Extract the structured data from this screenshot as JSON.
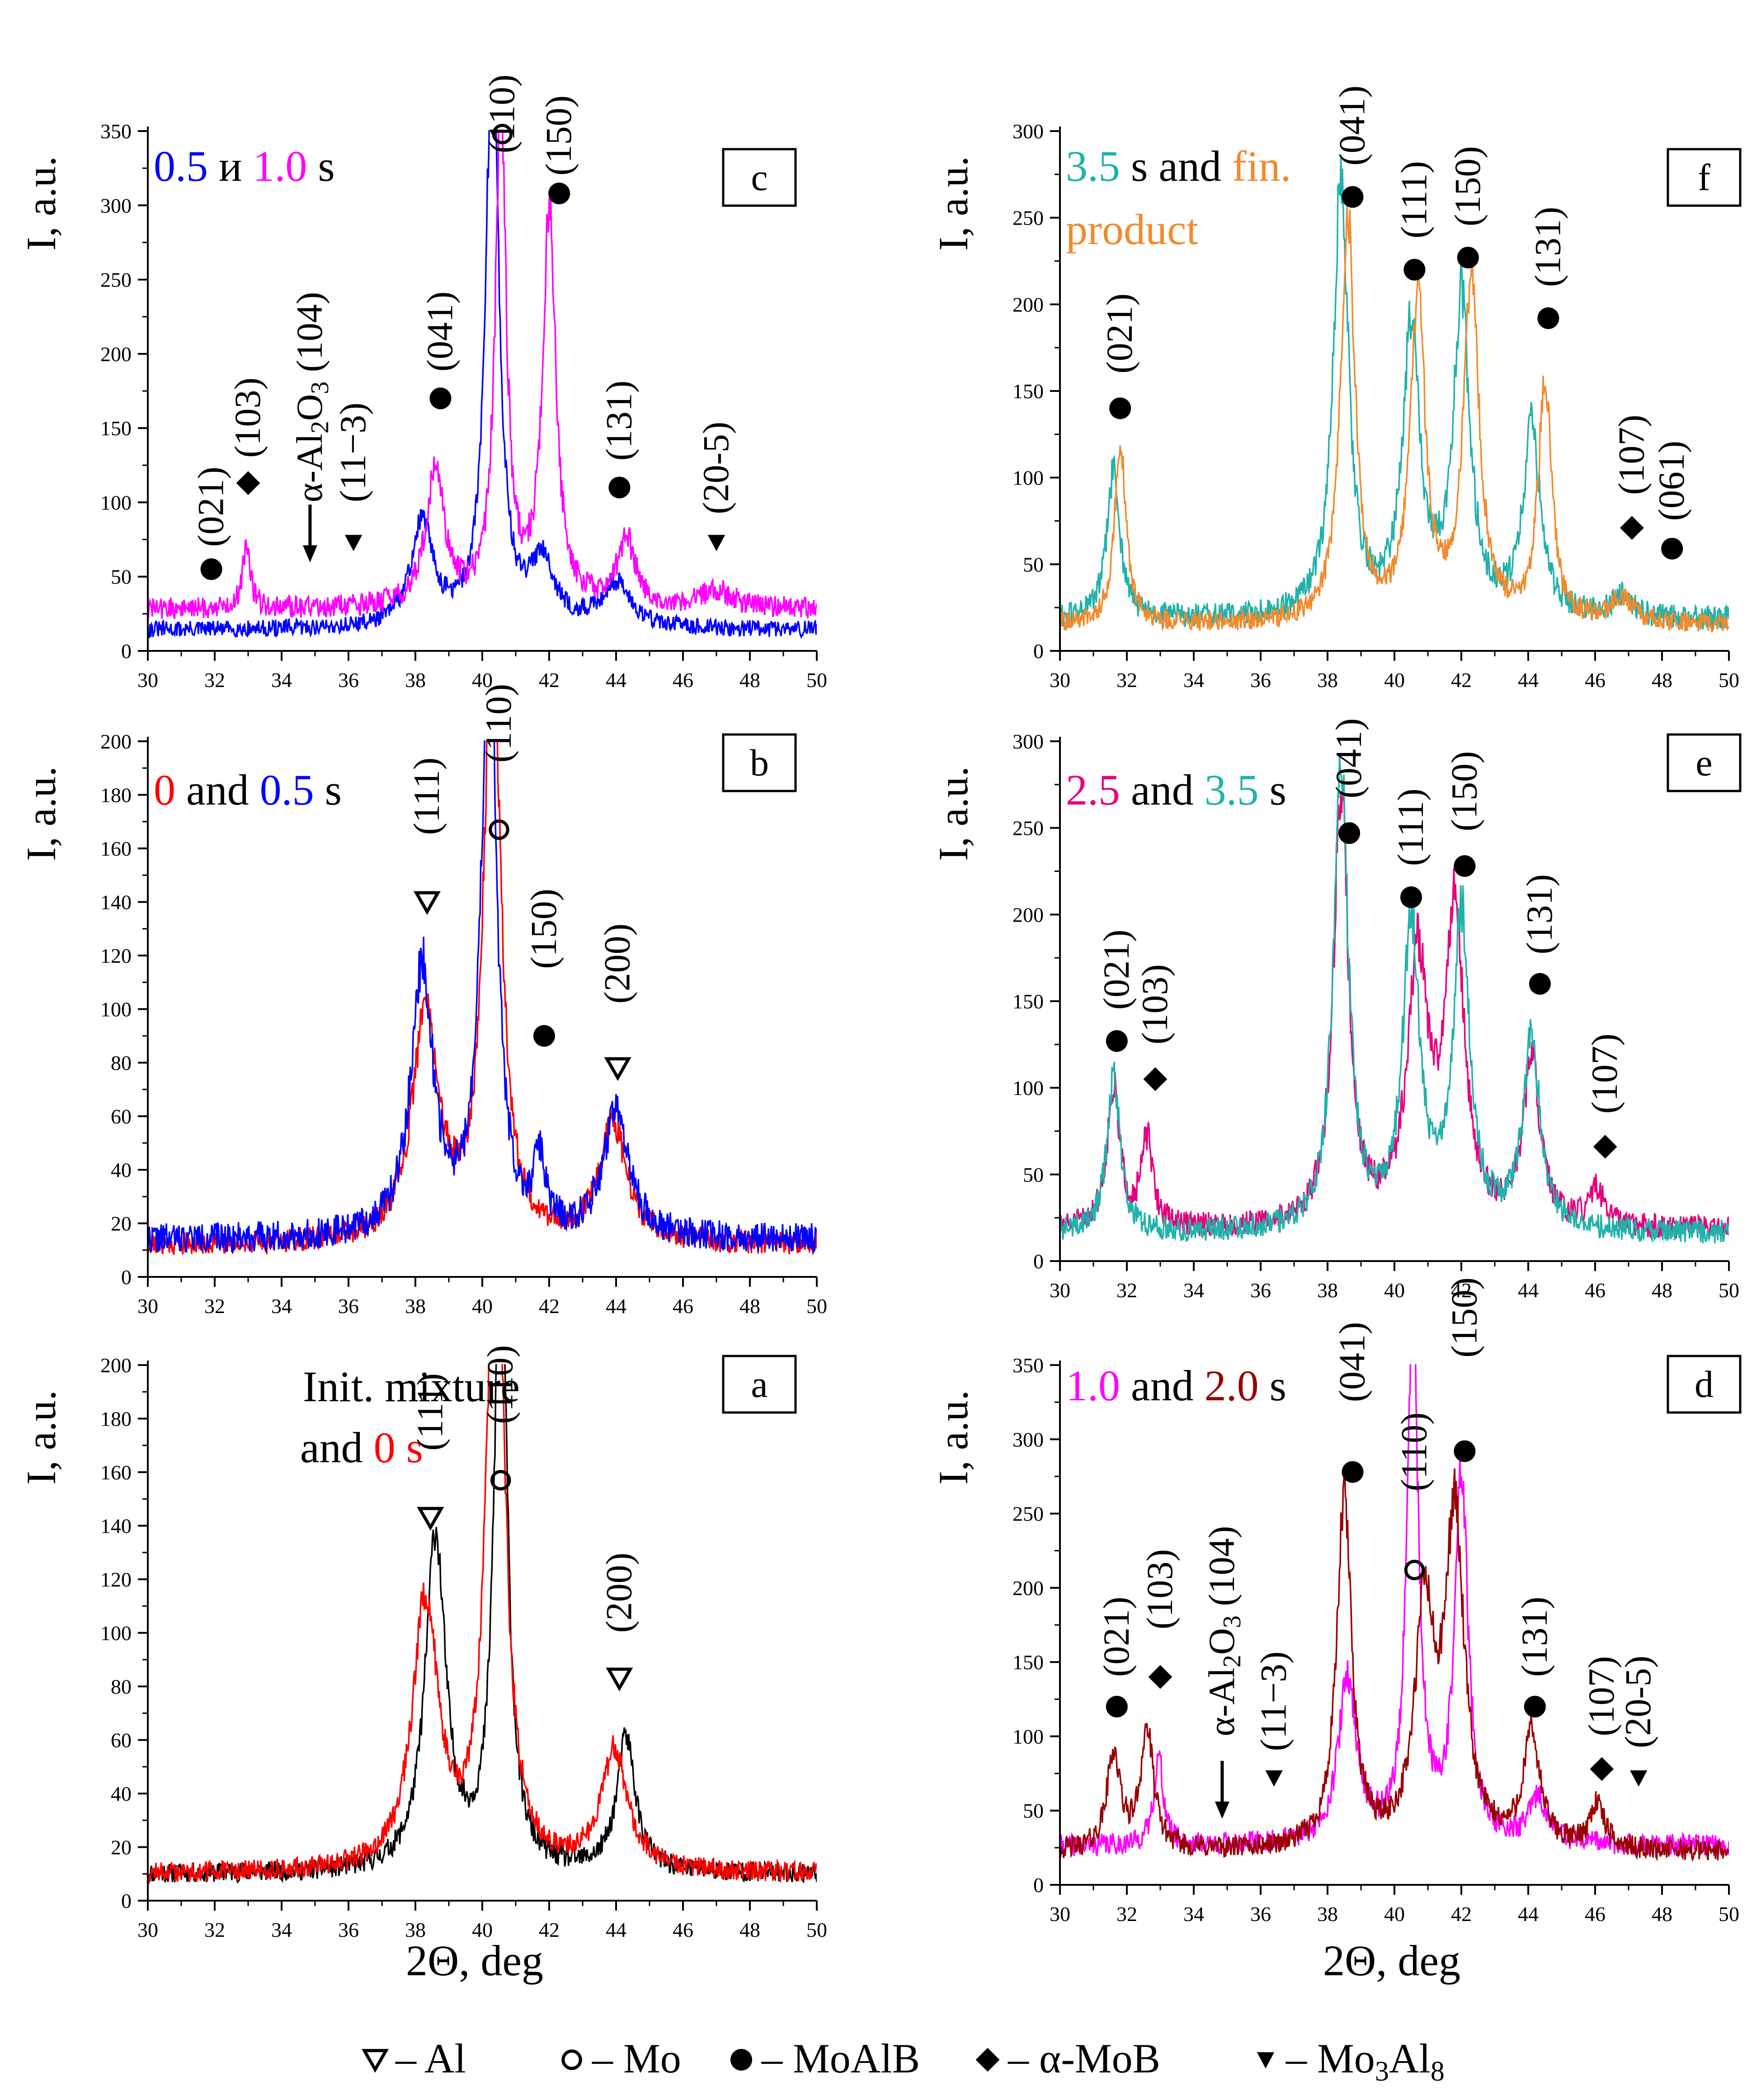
{
  "figure": {
    "x_axis_label": "2Θ, deg",
    "y_axis_label": "I, a.u.",
    "legend": [
      {
        "symbol": "open-triangle-down",
        "label": "– Al"
      },
      {
        "symbol": "open-circle",
        "label": "– Mo"
      },
      {
        "symbol": "filled-circle",
        "label": "– MoAlB"
      },
      {
        "symbol": "filled-diamond",
        "label": "– α-MoB"
      },
      {
        "symbol": "filled-triangle-down",
        "label": "– Mo3Al8"
      }
    ]
  },
  "chart_data": [
    {
      "panel": "a",
      "type": "line",
      "caption": [
        [
          {
            "text": "Init. mixture",
            "color": "#000000"
          }
        ],
        [
          {
            "text": "and ",
            "color": "#000000"
          },
          {
            "text": "0 s",
            "color": "#ff0000"
          }
        ]
      ],
      "xlim": [
        30,
        50
      ],
      "ylim": [
        0,
        200
      ],
      "yticks": [
        0,
        20,
        40,
        60,
        80,
        100,
        120,
        140,
        160,
        180,
        200
      ],
      "xticks": [
        30,
        32,
        34,
        36,
        38,
        40,
        42,
        44,
        46,
        48,
        50
      ],
      "series": [
        {
          "name": "Init. mixture",
          "color": "#000000",
          "baseline": 10,
          "noise": 3.5,
          "seed": 11,
          "peaks": [
            [
              38.6,
              125,
              0.55
            ],
            [
              40.55,
              240,
              0.35
            ],
            [
              44.3,
              50,
              0.5
            ]
          ]
        },
        {
          "name": "0 s",
          "color": "#ff0000",
          "baseline": 10,
          "noise": 3.5,
          "seed": 12,
          "peaks": [
            [
              38.3,
              100,
              0.7
            ],
            [
              40.4,
              270,
              0.45
            ],
            [
              43.95,
              45,
              0.7
            ]
          ]
        }
      ],
      "annotations": [
        {
          "text": "(111)",
          "x": 38.45,
          "y": 168,
          "marker": "open-triangle-down",
          "marker_y": 143
        },
        {
          "text": "(110)",
          "x": 40.55,
          "y": 178,
          "marker": "open-circle",
          "marker_y": 157
        },
        {
          "text": "(200)",
          "x": 44.1,
          "y": 100,
          "marker": "open-triangle-down",
          "marker_y": 83
        }
      ]
    },
    {
      "panel": "b",
      "type": "line",
      "caption": [
        [
          {
            "text": "0",
            "color": "#ff0000"
          },
          {
            "text": " and ",
            "color": "#000000"
          },
          {
            "text": "0.5",
            "color": "#0000ff"
          },
          {
            "text": " s",
            "color": "#000000"
          }
        ]
      ],
      "xlim": [
        30,
        50
      ],
      "ylim": [
        0,
        200
      ],
      "yticks": [
        0,
        20,
        40,
        60,
        80,
        100,
        120,
        140,
        160,
        180,
        200
      ],
      "xticks": [
        30,
        32,
        34,
        36,
        38,
        40,
        42,
        44,
        46,
        48,
        50
      ],
      "series": [
        {
          "name": "0 s",
          "color": "#ff0000",
          "baseline": 12,
          "noise": 4,
          "seed": 21,
          "peaks": [
            [
              38.3,
              85,
              0.7
            ],
            [
              40.3,
              230,
              0.45
            ],
            [
              43.9,
              45,
              0.7
            ]
          ]
        },
        {
          "name": "0.5 s",
          "color": "#0000ff",
          "baseline": 14,
          "noise": 5,
          "seed": 22,
          "peaks": [
            [
              38.2,
              100,
              0.6
            ],
            [
              40.2,
              230,
              0.4
            ],
            [
              41.7,
              25,
              0.3
            ],
            [
              44.0,
              45,
              0.7
            ]
          ]
        }
      ],
      "annotations": [
        {
          "text": "(111)",
          "x": 38.35,
          "y": 165,
          "marker": "open-triangle-down",
          "marker_y": 140
        },
        {
          "text": "(110)",
          "x": 40.5,
          "y": 192,
          "marker": "open-circle",
          "marker_y": 167
        },
        {
          "text": "(150)",
          "x": 41.85,
          "y": 115,
          "marker": "filled-circle",
          "marker_y": 90
        },
        {
          "text": "(200)",
          "x": 44.05,
          "y": 102,
          "marker": "open-triangle-down",
          "marker_y": 78
        }
      ]
    },
    {
      "panel": "c",
      "type": "line",
      "caption": [
        [
          {
            "text": "0.5",
            "color": "#0000ff"
          },
          {
            "text": " и ",
            "color": "#000000"
          },
          {
            "text": "1.0",
            "color": "#ff00ff"
          },
          {
            "text": " s",
            "color": "#000000"
          }
        ]
      ],
      "xlim": [
        30,
        50
      ],
      "ylim": [
        0,
        350
      ],
      "yticks": [
        0,
        50,
        100,
        150,
        200,
        250,
        300,
        350
      ],
      "xticks": [
        30,
        32,
        34,
        36,
        38,
        40,
        42,
        44,
        46,
        48,
        50
      ],
      "series": [
        {
          "name": "0.5 s",
          "color": "#0000ff",
          "baseline": 14,
          "noise": 5,
          "seed": 31,
          "peaks": [
            [
              38.2,
              70,
              0.6
            ],
            [
              40.3,
              400,
              0.35
            ],
            [
              41.8,
              45,
              0.6
            ],
            [
              44.0,
              30,
              0.8
            ]
          ]
        },
        {
          "name": "1.0 s",
          "color": "#ff00ff",
          "baseline": 28,
          "noise": 6,
          "seed": 32,
          "peaks": [
            [
              32.95,
              45,
              0.2
            ],
            [
              38.6,
              90,
              0.5
            ],
            [
              40.55,
              330,
              0.3
            ],
            [
              42.0,
              265,
              0.35
            ],
            [
              44.3,
              45,
              0.5
            ],
            [
              47.0,
              12,
              0.8
            ]
          ]
        }
      ],
      "annotations": [
        {
          "text": "(021)",
          "x": 31.9,
          "y": 70,
          "marker": "filled-circle",
          "marker_y": 55
        },
        {
          "text": "(103)",
          "x": 33.0,
          "y": 130,
          "marker": "filled-diamond",
          "marker_y": 113
        },
        {
          "text": "α-Al2O3 (104)",
          "x": 34.85,
          "y": 100,
          "marker": "arrow-down",
          "marker_y": 65
        },
        {
          "text": "(11−3)",
          "x": 36.15,
          "y": 100,
          "marker": "filled-triangle-down",
          "marker_y": 73
        },
        {
          "text": "(041)",
          "x": 38.75,
          "y": 188,
          "marker": "filled-circle",
          "marker_y": 170
        },
        {
          "text": "(110)",
          "x": 40.6,
          "y": 335,
          "marker": "open-circle",
          "marker_y": 348
        },
        {
          "text": "(150)",
          "x": 42.3,
          "y": 320,
          "marker": "filled-circle",
          "marker_y": 308
        },
        {
          "text": "(131)",
          "x": 44.1,
          "y": 128,
          "marker": "filled-circle",
          "marker_y": 110
        },
        {
          "text": "(20-5)",
          "x": 47.0,
          "y": 92,
          "marker": "filled-triangle-down",
          "marker_y": 73
        }
      ]
    },
    {
      "panel": "d",
      "type": "line",
      "caption": [
        [
          {
            "text": "1.0",
            "color": "#ff00ff"
          },
          {
            "text": " and ",
            "color": "#000000"
          },
          {
            "text": "2.0",
            "color": "#990000"
          },
          {
            "text": " s",
            "color": "#000000"
          }
        ]
      ],
      "xlim": [
        30,
        50
      ],
      "ylim": [
        0,
        350
      ],
      "yticks": [
        0,
        50,
        100,
        150,
        200,
        250,
        300,
        350
      ],
      "xticks": [
        30,
        32,
        34,
        36,
        38,
        40,
        42,
        44,
        46,
        48,
        50
      ],
      "series": [
        {
          "name": "1.0 s",
          "color": "#ff00ff",
          "baseline": 26,
          "noise": 6,
          "seed": 41,
          "peaks": [
            [
              32.95,
              60,
              0.25
            ],
            [
              38.6,
              110,
              0.5
            ],
            [
              40.55,
              360,
              0.3
            ],
            [
              42.0,
              250,
              0.35
            ],
            [
              44.3,
              30,
              0.5
            ]
          ]
        },
        {
          "name": "2.0 s",
          "color": "#990000",
          "baseline": 22,
          "noise": 6,
          "seed": 42,
          "peaks": [
            [
              31.6,
              65,
              0.35
            ],
            [
              32.6,
              80,
              0.35
            ],
            [
              38.5,
              235,
              0.4
            ],
            [
              40.9,
              155,
              0.5
            ],
            [
              41.8,
              220,
              0.5
            ],
            [
              44.1,
              75,
              0.45
            ],
            [
              46.05,
              30,
              0.4
            ]
          ]
        }
      ],
      "annotations": [
        {
          "text": "(021)",
          "x": 31.7,
          "y": 140,
          "marker": "filled-circle",
          "marker_y": 120
        },
        {
          "text": "(103)",
          "x": 33.0,
          "y": 172,
          "marker": "filled-diamond",
          "marker_y": 140
        },
        {
          "text": "α-Al2O3 (104)",
          "x": 34.85,
          "y": 100,
          "marker": "arrow-down",
          "marker_y": 50
        },
        {
          "text": "(11−3)",
          "x": 36.4,
          "y": 90,
          "marker": "filled-triangle-down",
          "marker_y": 72
        },
        {
          "text": "(041)",
          "x": 38.75,
          "y": 325,
          "marker": "filled-circle",
          "marker_y": 278
        },
        {
          "text": "(110)",
          "x": 40.6,
          "y": 265,
          "marker": "open-circle",
          "marker_y": 212
        },
        {
          "text": "(150)",
          "x": 42.1,
          "y": 355,
          "marker": "filled-circle",
          "marker_y": 292
        },
        {
          "text": "(131)",
          "x": 44.2,
          "y": 140,
          "marker": "filled-circle",
          "marker_y": 120
        },
        {
          "text": "(107)",
          "x": 46.2,
          "y": 100,
          "marker": "filled-diamond",
          "marker_y": 78
        },
        {
          "text": "(20-5)",
          "x": 47.3,
          "y": 92,
          "marker": "filled-triangle-down",
          "marker_y": 72
        }
      ]
    },
    {
      "panel": "e",
      "type": "line",
      "caption": [
        [
          {
            "text": "2.5",
            "color": "#e6007e"
          },
          {
            "text": " and ",
            "color": "#000000"
          },
          {
            "text": "3.5",
            "color": "#20b2aa"
          },
          {
            "text": " s",
            "color": "#000000"
          }
        ]
      ],
      "xlim": [
        30,
        50
      ],
      "ylim": [
        0,
        300
      ],
      "yticks": [
        0,
        50,
        100,
        150,
        200,
        250,
        300
      ],
      "xticks": [
        30,
        32,
        34,
        36,
        38,
        40,
        42,
        44,
        46,
        48,
        50
      ],
      "series": [
        {
          "name": "2.5 s",
          "color": "#e6007e",
          "baseline": 18,
          "noise": 6,
          "seed": 51,
          "peaks": [
            [
              31.6,
              80,
              0.35
            ],
            [
              32.6,
              50,
              0.3
            ],
            [
              38.4,
              250,
              0.4
            ],
            [
              40.7,
              150,
              0.55
            ],
            [
              41.8,
              180,
              0.5
            ],
            [
              44.1,
              95,
              0.45
            ],
            [
              46.05,
              20,
              0.4
            ]
          ]
        },
        {
          "name": "3.5 s",
          "color": "#20b2aa",
          "baseline": 16,
          "noise": 6,
          "seed": 52,
          "peaks": [
            [
              31.6,
              90,
              0.35
            ],
            [
              38.4,
              270,
              0.4
            ],
            [
              40.5,
              175,
              0.45
            ],
            [
              42.0,
              180,
              0.45
            ],
            [
              44.1,
              110,
              0.45
            ]
          ]
        }
      ],
      "annotations": [
        {
          "text": "(021)",
          "x": 31.7,
          "y": 145,
          "marker": "filled-circle",
          "marker_y": 127
        },
        {
          "text": "(103)",
          "x": 32.85,
          "y": 125,
          "marker": "filled-diamond",
          "marker_y": 105
        },
        {
          "text": "(041)",
          "x": 38.65,
          "y": 267,
          "marker": "filled-circle",
          "marker_y": 247
        },
        {
          "text": "(111)",
          "x": 40.5,
          "y": 228,
          "marker": "filled-circle",
          "marker_y": 210
        },
        {
          "text": "(150)",
          "x": 42.1,
          "y": 248,
          "marker": "filled-circle",
          "marker_y": 228
        },
        {
          "text": "(131)",
          "x": 44.35,
          "y": 177,
          "marker": "filled-circle",
          "marker_y": 160
        },
        {
          "text": "(107)",
          "x": 46.3,
          "y": 85,
          "marker": "filled-diamond",
          "marker_y": 66
        }
      ]
    },
    {
      "panel": "f",
      "type": "line",
      "caption": [
        [
          {
            "text": "3.5",
            "color": "#20b2aa"
          },
          {
            "text": " s and ",
            "color": "#000000"
          },
          {
            "text": "fin.",
            "color": "#f28a2e"
          }
        ],
        [
          {
            "text": "product",
            "color": "#f28a2e"
          }
        ]
      ],
      "xlim": [
        30,
        50
      ],
      "ylim": [
        0,
        300
      ],
      "yticks": [
        0,
        50,
        100,
        150,
        200,
        250,
        300
      ],
      "xticks": [
        30,
        32,
        34,
        36,
        38,
        40,
        42,
        44,
        46,
        48,
        50
      ],
      "series": [
        {
          "name": "3.5 s",
          "color": "#20b2aa",
          "baseline": 18,
          "noise": 6,
          "seed": 61,
          "peaks": [
            [
              31.6,
              85,
              0.35
            ],
            [
              38.4,
              255,
              0.4
            ],
            [
              40.5,
              165,
              0.45
            ],
            [
              42.0,
              180,
              0.45
            ],
            [
              44.1,
              110,
              0.45
            ],
            [
              46.8,
              12,
              0.5
            ]
          ]
        },
        {
          "name": "fin. product",
          "color": "#f28a2e",
          "baseline": 15,
          "noise": 5,
          "seed": 62,
          "peaks": [
            [
              31.8,
              105,
              0.3
            ],
            [
              38.6,
              235,
              0.38
            ],
            [
              40.7,
              185,
              0.4
            ],
            [
              42.3,
              195,
              0.42
            ],
            [
              44.5,
              140,
              0.35
            ],
            [
              46.8,
              15,
              0.5
            ]
          ]
        }
      ],
      "annotations": [
        {
          "text": "(021)",
          "x": 31.8,
          "y": 160,
          "marker": "filled-circle",
          "marker_y": 140
        },
        {
          "text": "(041)",
          "x": 38.75,
          "y": 280,
          "marker": "filled-circle",
          "marker_y": 262
        },
        {
          "text": "(111)",
          "x": 40.6,
          "y": 238,
          "marker": "filled-circle",
          "marker_y": 220
        },
        {
          "text": "(150)",
          "x": 42.2,
          "y": 245,
          "marker": "filled-circle",
          "marker_y": 227
        },
        {
          "text": "(131)",
          "x": 44.6,
          "y": 210,
          "marker": "filled-circle",
          "marker_y": 192
        },
        {
          "text": "(107)",
          "x": 47.1,
          "y": 90,
          "marker": "filled-diamond",
          "marker_y": 71
        },
        {
          "text": "(061)",
          "x": 48.3,
          "y": 75,
          "marker": "filled-circle",
          "marker_y": 59
        }
      ]
    }
  ]
}
